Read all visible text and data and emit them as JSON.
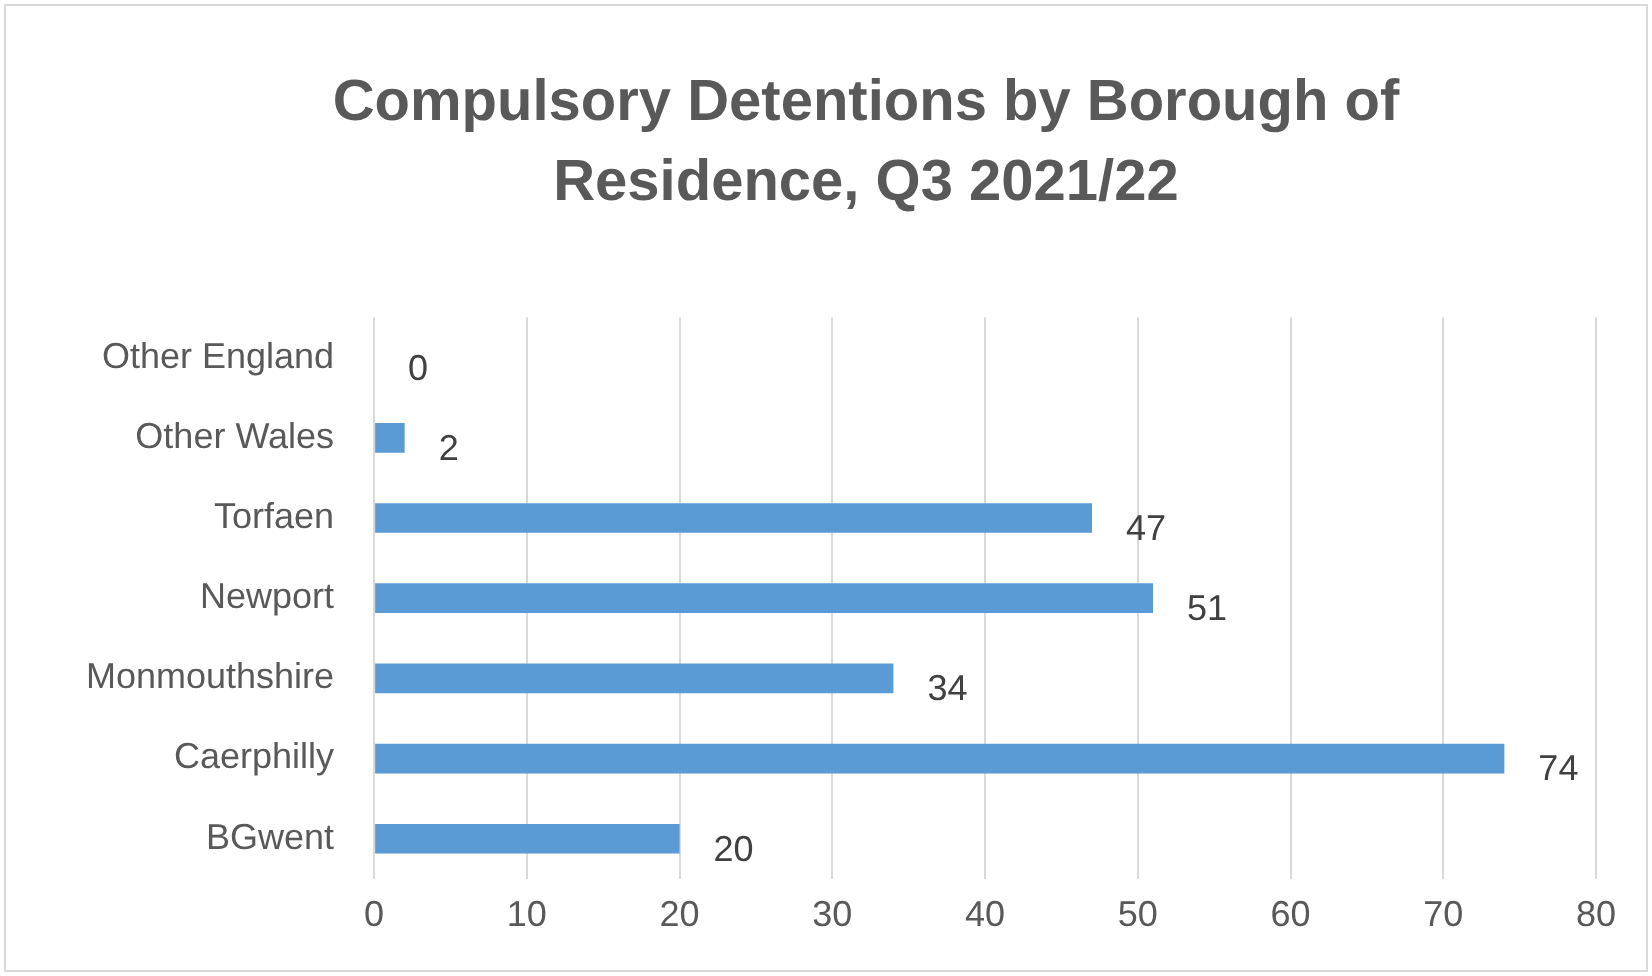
{
  "chart_data": {
    "type": "bar",
    "orientation": "horizontal",
    "title": "Compulsory Detentions by Borough of Residence, Q3 2021/22",
    "categories": [
      "Other England",
      "Other Wales",
      "Torfaen",
      "Newport",
      "Monmouthshire",
      "Caerphilly",
      "BGwent"
    ],
    "values": [
      0,
      2,
      47,
      51,
      34,
      74,
      20
    ],
    "color": "#5b9bd5",
    "xlim": [
      0,
      80
    ],
    "xticks": [
      0,
      10,
      20,
      30,
      40,
      50,
      60,
      70,
      80
    ],
    "grid": "x",
    "data_labels": true
  }
}
